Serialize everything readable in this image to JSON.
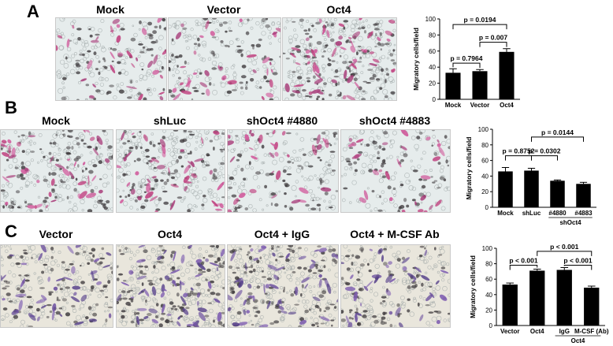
{
  "panels": [
    {
      "letter": "A",
      "image_titles": [
        "Mock",
        "Vector",
        "Oct4"
      ],
      "tint": "pink"
    },
    {
      "letter": "B",
      "image_titles": [
        "Mock",
        "shLuc",
        "shOct4 #4880",
        "shOct4 #4883"
      ],
      "tint": "pink"
    },
    {
      "letter": "C",
      "image_titles": [
        "Vector",
        "Oct4",
        "Oct4 + IgG",
        "Oct4 + M-CSF Ab"
      ],
      "tint": "purple"
    }
  ],
  "chart_data": [
    {
      "type": "bar",
      "panel": "A",
      "categories": [
        "Mock",
        "Vector",
        "Oct4"
      ],
      "values": [
        33,
        35,
        59
      ],
      "errors": [
        5,
        2,
        4
      ],
      "ylabel": "Migratory cells/field",
      "ylim": [
        0,
        100
      ],
      "yticks": [
        0,
        20,
        40,
        60,
        80,
        100
      ],
      "group_labels": [],
      "comparisons": [
        {
          "from": 0,
          "to": 1,
          "label": "p = 0.7964",
          "level": 45
        },
        {
          "from": 1,
          "to": 2,
          "label": "p = 0.007",
          "level": 71
        },
        {
          "from": 0,
          "to": 2,
          "label": "p = 0.0194",
          "level": 93
        }
      ]
    },
    {
      "type": "bar",
      "panel": "B",
      "categories": [
        "Mock",
        "shLuc",
        "#4880",
        "#4883"
      ],
      "values": [
        46,
        47,
        34,
        30
      ],
      "errors": [
        5,
        3,
        1,
        2
      ],
      "ylabel": "Migratory cells/field",
      "ylim": [
        0,
        100
      ],
      "yticks": [
        0,
        20,
        40,
        60,
        80,
        100
      ],
      "group_labels": [
        {
          "from": 2,
          "to": 3,
          "label": "shOct4"
        }
      ],
      "comparisons": [
        {
          "from": 0,
          "to": 1,
          "label": "p = 0.8752",
          "level": 66
        },
        {
          "from": 1,
          "to": 2,
          "label": "p = 0.0302",
          "level": 66
        },
        {
          "from": 1,
          "to": 3,
          "label": "p = 0.0144",
          "level": 90
        }
      ]
    },
    {
      "type": "bar",
      "panel": "C",
      "categories": [
        "Vector",
        "Oct4",
        "IgG",
        "M-CSF (Ab)"
      ],
      "values": [
        53,
        71,
        72,
        49
      ],
      "errors": [
        2,
        2,
        3,
        2
      ],
      "ylabel": "Migratory cells/field",
      "ylim": [
        0,
        100
      ],
      "yticks": [
        0,
        20,
        40,
        60,
        80,
        100
      ],
      "group_labels": [
        {
          "from": 2,
          "to": 3,
          "label": "Oct4"
        }
      ],
      "comparisons": [
        {
          "from": 0,
          "to": 1,
          "label": "p < 0.001",
          "level": 78
        },
        {
          "from": 2,
          "to": 3,
          "label": "p < 0.001",
          "level": 78
        },
        {
          "from": 1,
          "to": 3,
          "label": "p < 0.001",
          "level": 96
        }
      ]
    }
  ]
}
